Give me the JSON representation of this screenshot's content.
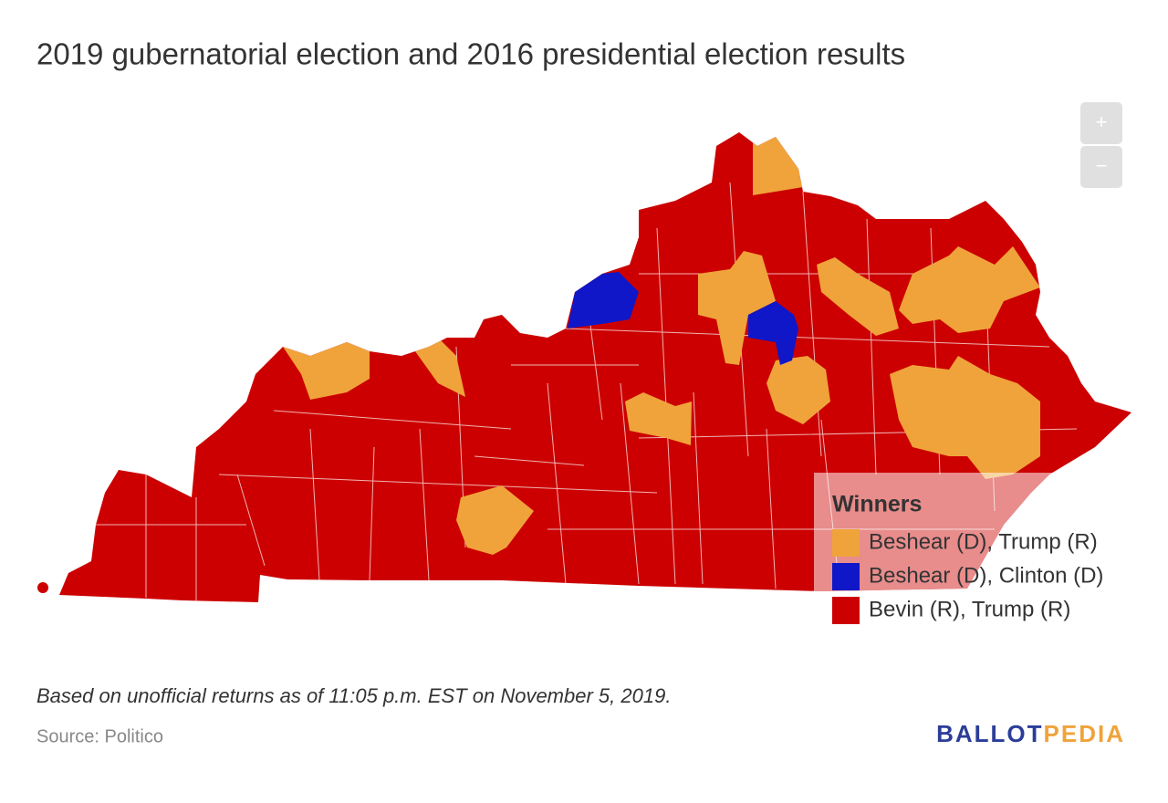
{
  "header": {
    "title": "2019 gubernatorial election and 2016 presidential election results"
  },
  "zoom": {
    "in": "+",
    "out": "−"
  },
  "legend": {
    "title": "Winners",
    "items": [
      {
        "label": "Beshear (D), Trump (R)",
        "color": "#f0a33a"
      },
      {
        "label": "Beshear (D), Clinton (D)",
        "color": "#0f17c8"
      },
      {
        "label": "Bevin (R), Trump (R)",
        "color": "#cc0000"
      }
    ]
  },
  "footer": {
    "note": "Based on unofficial returns as of 11:05 p.m. EST on November 5, 2019.",
    "source": "Source: Politico",
    "logo": {
      "first": "BALLOT",
      "second": "PEDIA"
    }
  }
}
